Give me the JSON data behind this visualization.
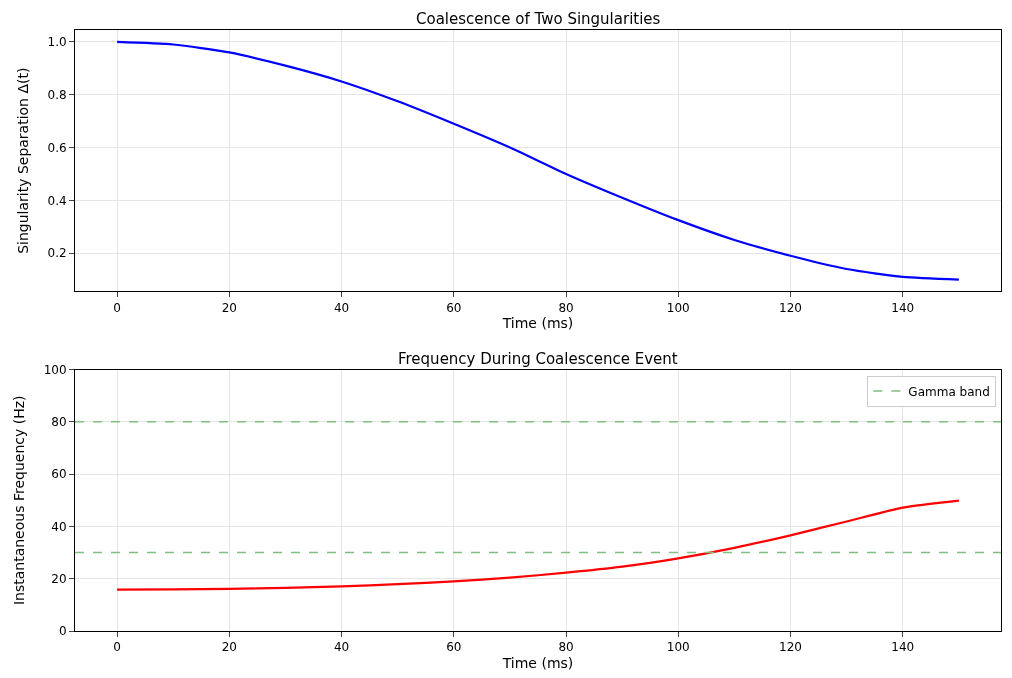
{
  "chart_data": [
    {
      "type": "line",
      "title": "Coalescence of Two Singularities",
      "xlabel": "Time (ms)",
      "ylabel": "Singularity Separation Δ(t)",
      "x": [
        0,
        10,
        20,
        30,
        40,
        50,
        60,
        70,
        80,
        90,
        100,
        110,
        120,
        130,
        140,
        150
      ],
      "series": [
        {
          "color": "#0000ff",
          "values": [
            1.0,
            0.99,
            0.96,
            0.91,
            0.85,
            0.775,
            0.69,
            0.6,
            0.5,
            0.41,
            0.325,
            0.25,
            0.19,
            0.14,
            0.11,
            0.1
          ]
        }
      ],
      "xlim": [
        -7.5,
        157.5
      ],
      "xticks": [
        0,
        20,
        40,
        60,
        80,
        100,
        120,
        140
      ],
      "ylim": [
        0.055,
        1.045
      ],
      "yticks": [
        0.2,
        0.4,
        0.6,
        0.8,
        {
          "value": 1,
          "label": "1.0"
        }
      ],
      "grid": true,
      "legend": false
    },
    {
      "type": "line",
      "title": "Frequency During Coalescence Event",
      "xlabel": "Time (ms)",
      "ylabel": "Instantaneous Frequency (Hz)",
      "x": [
        0,
        10,
        20,
        30,
        40,
        50,
        60,
        70,
        80,
        90,
        100,
        110,
        120,
        130,
        140,
        150
      ],
      "series": [
        {
          "color": "#ff0000",
          "values": [
            15.8,
            15.9,
            16.1,
            16.5,
            17.1,
            17.9,
            19.0,
            20.4,
            22.3,
            24.6,
            27.8,
            31.8,
            36.6,
            41.9,
            47.2,
            49.9
          ]
        }
      ],
      "ref_lines": [
        {
          "axis": "y",
          "value": 30,
          "label": "Gamma band",
          "color": "#7fbf7f",
          "line_style": "dashed"
        },
        {
          "axis": "y",
          "value": 80,
          "color": "#7fbf7f",
          "line_style": "dashed"
        }
      ],
      "xlim": [
        -7.5,
        157.5
      ],
      "xticks": [
        0,
        20,
        40,
        60,
        80,
        100,
        120,
        140
      ],
      "ylim": [
        0,
        100
      ],
      "yticks": [
        0,
        20,
        40,
        60,
        80,
        100
      ],
      "grid": true,
      "legend": "top right"
    }
  ]
}
